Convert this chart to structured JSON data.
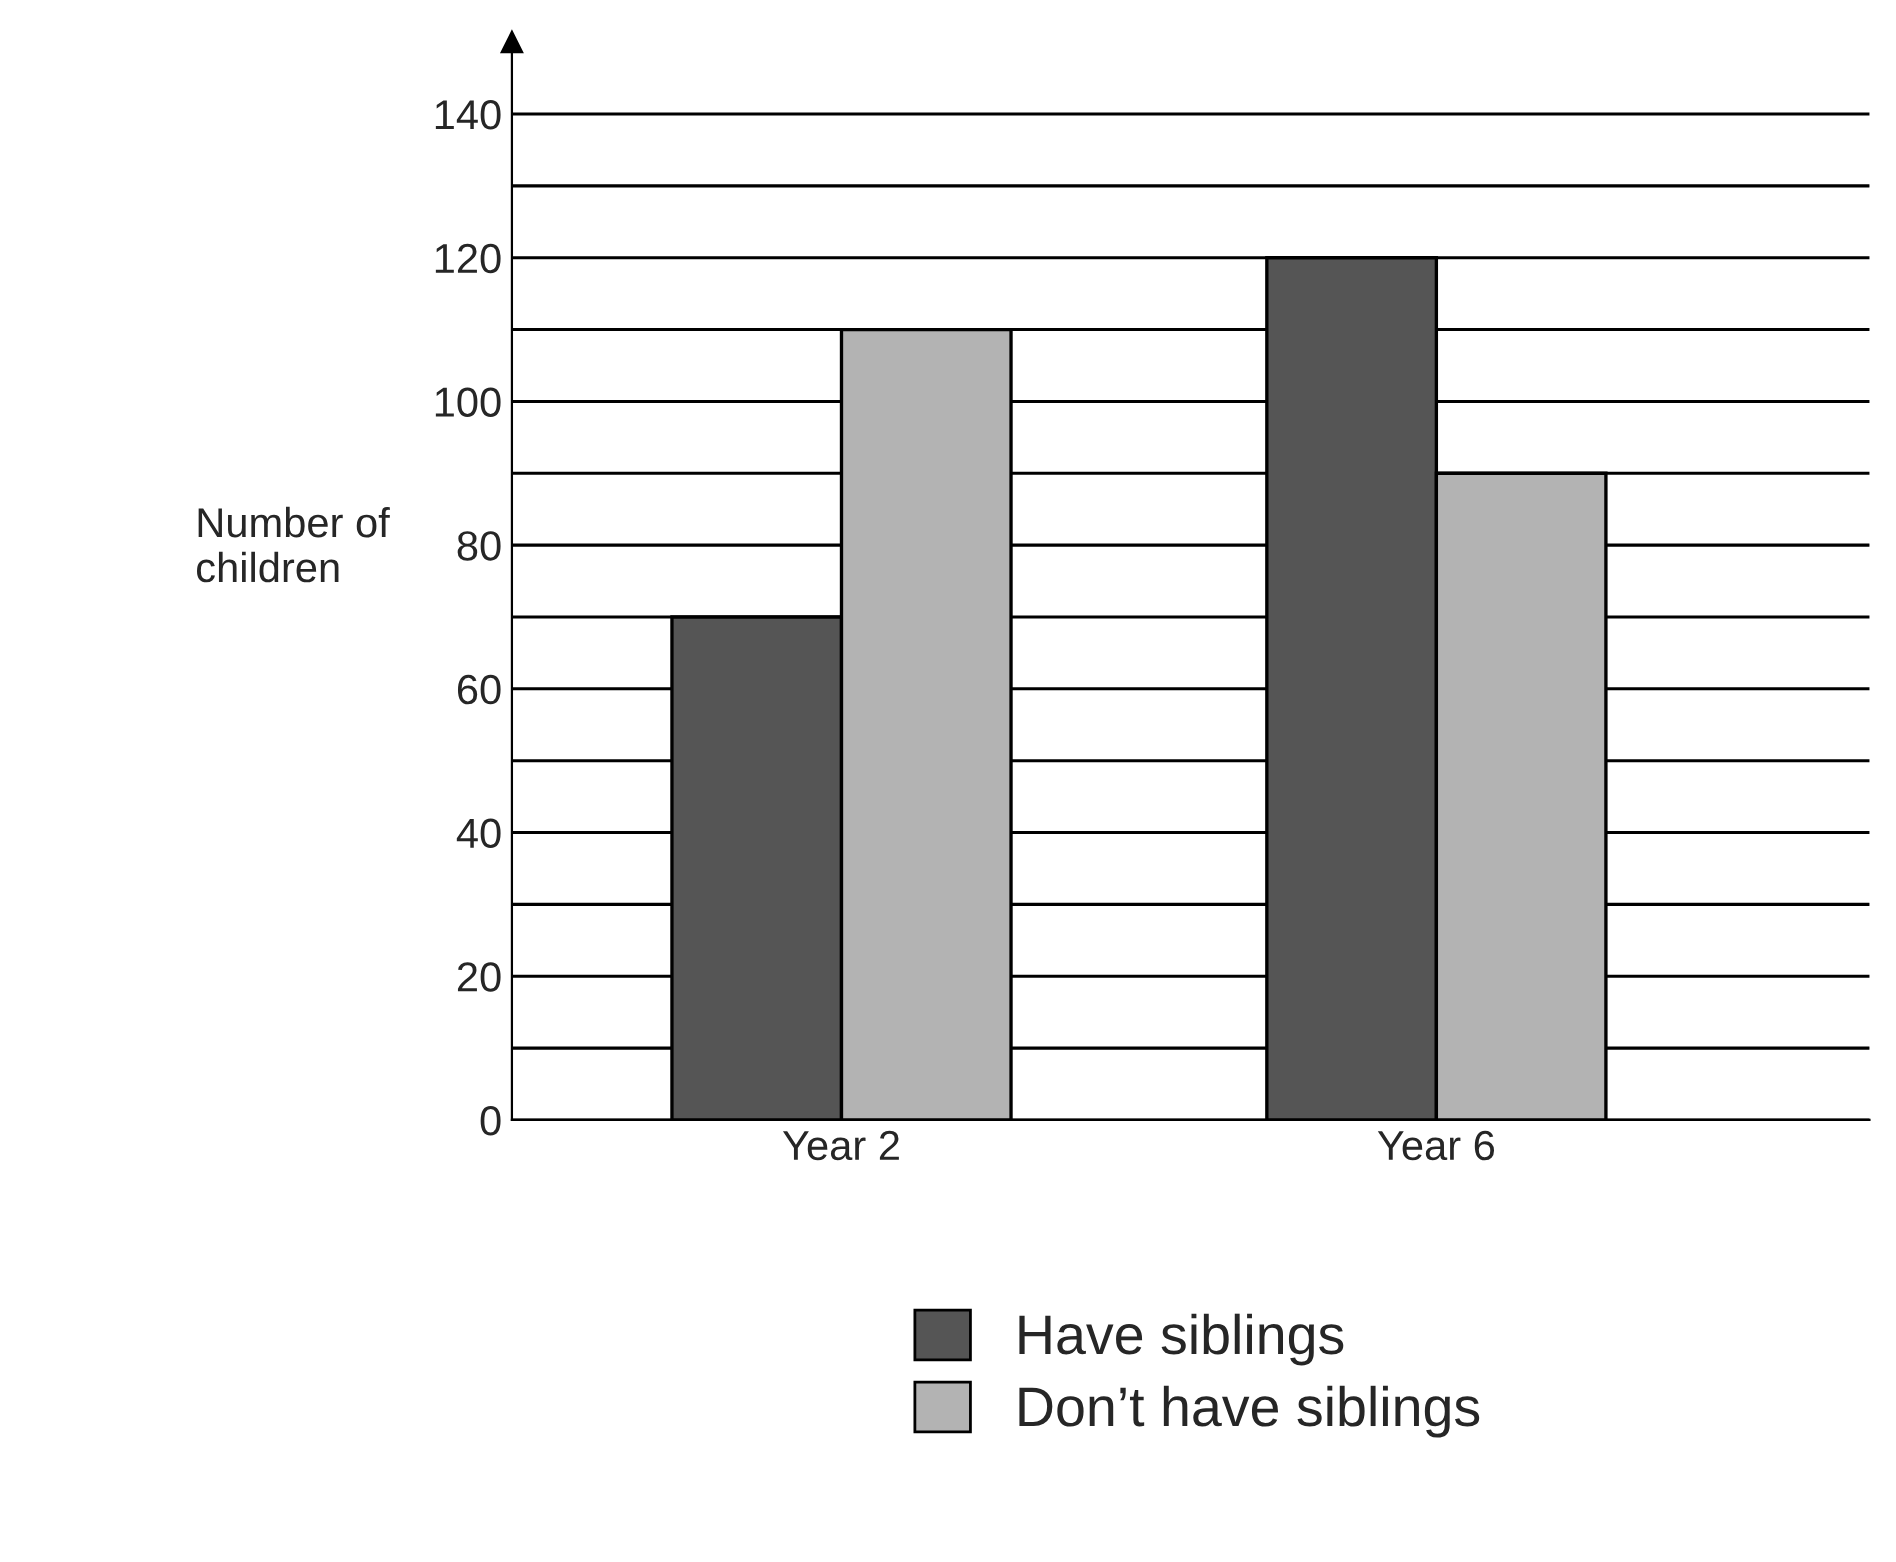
{
  "chart_data": {
    "type": "bar",
    "ylabel": "Number of\nchildren",
    "categories": [
      "Year 2",
      "Year 6"
    ],
    "series": [
      {
        "name": "Have siblings",
        "color": "#555555",
        "values": [
          70,
          120
        ]
      },
      {
        "name": "Don’t have siblings",
        "color": "#b3b3b3",
        "values": [
          110,
          90
        ]
      }
    ],
    "ylim": [
      0,
      150
    ],
    "yticks": [
      0,
      {
        "value": 10,
        "label": null
      },
      20,
      {
        "value": 30,
        "label": null
      },
      40,
      {
        "value": 50,
        "label": null
      },
      60,
      {
        "value": 70,
        "label": null
      },
      80,
      {
        "value": 90,
        "label": null
      },
      100,
      {
        "value": 110,
        "label": null
      },
      120,
      {
        "value": 130,
        "label": null
      },
      140
    ],
    "grid": "y",
    "legend": "bottom"
  }
}
